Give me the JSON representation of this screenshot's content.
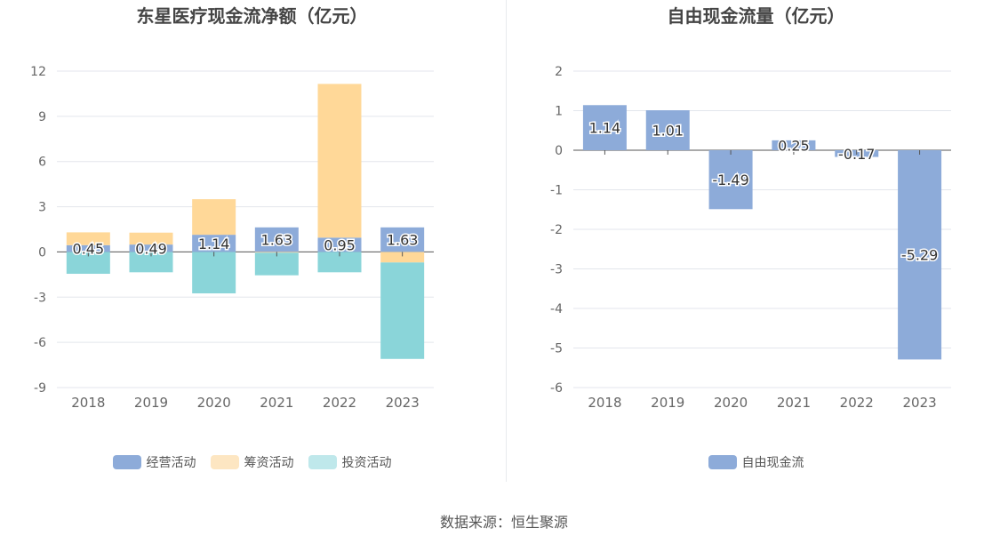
{
  "charts": {
    "left": {
      "title": "东星医疗现金流净额（亿元）"
    },
    "right": {
      "title": "自由现金流量（亿元）"
    }
  },
  "chart_data": [
    {
      "type": "bar",
      "stacked": true,
      "title": "东星医疗现金流净额（亿元）",
      "categories": [
        "2018",
        "2019",
        "2020",
        "2021",
        "2022",
        "2023"
      ],
      "series": [
        {
          "name": "经营活动",
          "color": "#8dabd9",
          "labeled": true,
          "values": [
            0.45,
            0.49,
            1.14,
            1.63,
            0.95,
            1.63
          ]
        },
        {
          "name": "筹资活动",
          "color": "#ffd898",
          "legend_color": "#fde6c2",
          "labeled": false,
          "values": [
            0.85,
            0.79,
            2.36,
            -0.05,
            10.2,
            -0.7
          ]
        },
        {
          "name": "投资活动",
          "color": "#8ad5d9",
          "legend_color": "#bfe8eb",
          "labeled": false,
          "values": [
            -1.45,
            -1.35,
            -2.75,
            -1.5,
            -1.35,
            -6.4
          ]
        }
      ],
      "ylim": [
        -9,
        12
      ],
      "yticks": [
        12,
        9,
        6,
        3,
        0,
        -3,
        -6,
        -9
      ],
      "grid": true,
      "legend_position": "bottom"
    },
    {
      "type": "bar",
      "title": "自由现金流量（亿元）",
      "categories": [
        "2018",
        "2019",
        "2020",
        "2021",
        "2022",
        "2023"
      ],
      "series": [
        {
          "name": "自由现金流",
          "color": "#8dabd9",
          "labeled": true,
          "values": [
            1.14,
            1.01,
            -1.49,
            0.25,
            -0.17,
            -5.29
          ]
        }
      ],
      "ylim": [
        -6,
        2
      ],
      "yticks": [
        2,
        1,
        0,
        -1,
        -2,
        -3,
        -4,
        -5,
        -6
      ],
      "grid": true,
      "legend_position": "bottom"
    }
  ],
  "footer": {
    "source": "数据来源：恒生聚源"
  }
}
